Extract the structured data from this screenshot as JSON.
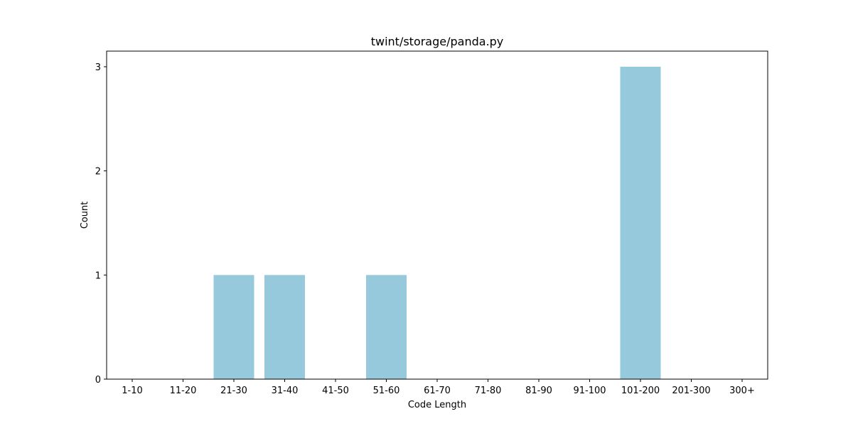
{
  "chart_data": {
    "type": "bar",
    "title": "twint/storage/panda.py",
    "xlabel": "Code Length",
    "ylabel": "Count",
    "categories": [
      "1-10",
      "11-20",
      "21-30",
      "31-40",
      "41-50",
      "51-60",
      "61-70",
      "71-80",
      "81-90",
      "91-100",
      "101-200",
      "201-300",
      "300+"
    ],
    "values": [
      0,
      0,
      1,
      1,
      0,
      1,
      0,
      0,
      0,
      0,
      3,
      0,
      0
    ],
    "ylim": [
      0,
      3.15
    ],
    "yticks": [
      "0",
      "1",
      "2",
      "3"
    ],
    "grid": false,
    "bar_color": "#96c9dc"
  }
}
